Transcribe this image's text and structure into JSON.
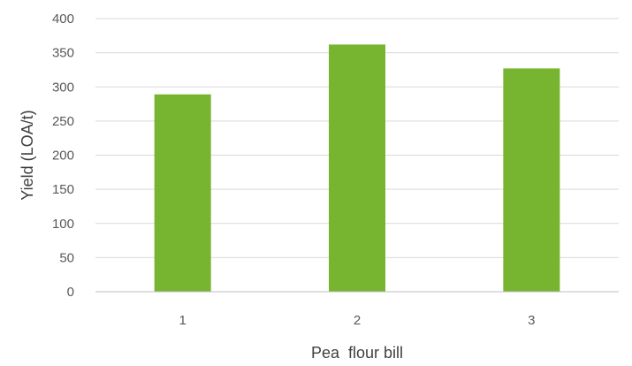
{
  "chart_data": {
    "type": "bar",
    "categories": [
      "1",
      "2",
      "3"
    ],
    "series": [
      {
        "values": [
          289,
          362,
          327
        ],
        "color": "#77b530"
      }
    ],
    "xlabel": "Pea  flour bill",
    "ylabel": "Yield (LOA/t)",
    "ylim": [
      0,
      400
    ],
    "yticks": [
      0,
      50,
      100,
      150,
      200,
      250,
      300,
      350,
      400
    ],
    "grid": true,
    "legend": "none"
  }
}
